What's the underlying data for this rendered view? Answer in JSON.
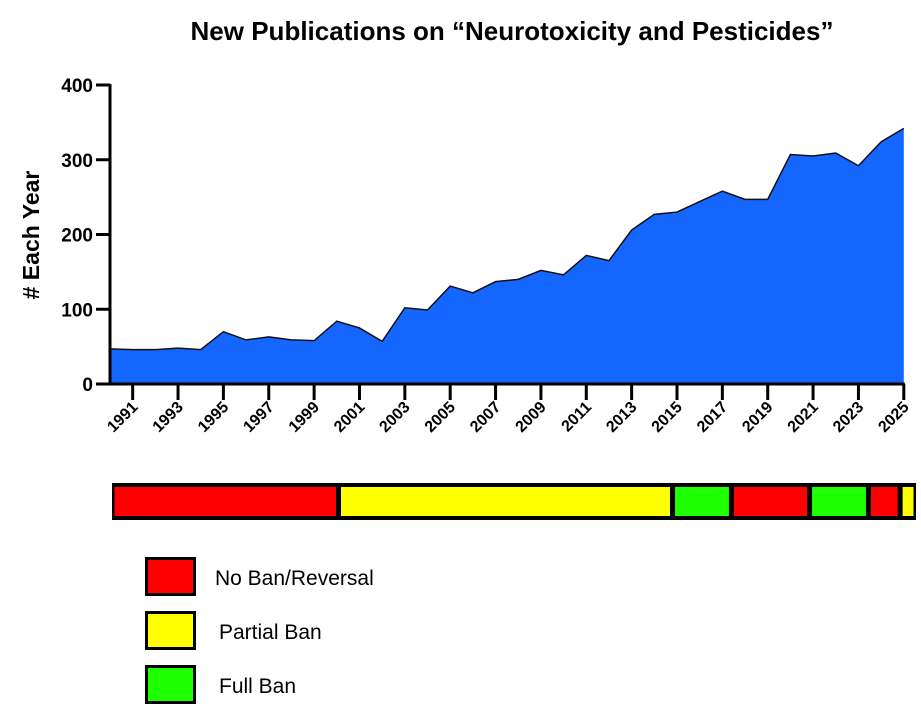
{
  "chart_data": {
    "type": "area",
    "title": "New Publications on “Neurotoxicity and Pesticides”",
    "xlabel": "",
    "ylabel": "# Each Year",
    "ylim": [
      0,
      400
    ],
    "xlim": [
      1990,
      2025
    ],
    "grid": false,
    "yticks": [
      "0",
      "100",
      "200",
      "300",
      "400"
    ],
    "xticks": [
      "1991",
      "1993",
      "1995",
      "1997",
      "1999",
      "2001",
      "2003",
      "2005",
      "2007",
      "2009",
      "2011",
      "2013",
      "2015",
      "2017",
      "2019",
      "2021",
      "2023",
      "2025"
    ],
    "x": [
      1990,
      1991,
      1992,
      1993,
      1994,
      1995,
      1996,
      1997,
      1998,
      1999,
      2000,
      2001,
      2002,
      2003,
      2004,
      2005,
      2006,
      2007,
      2008,
      2009,
      2010,
      2011,
      2012,
      2013,
      2014,
      2015,
      2016,
      2017,
      2018,
      2019,
      2020,
      2021,
      2022,
      2023,
      2024,
      2025
    ],
    "values": [
      47,
      46,
      46,
      48,
      46,
      70,
      59,
      63,
      59,
      58,
      84,
      75,
      57,
      102,
      99,
      131,
      122,
      137,
      140,
      152,
      146,
      172,
      165,
      206,
      227,
      230,
      244,
      258,
      247,
      247,
      307,
      305,
      309,
      292,
      324,
      342
    ],
    "fill_color": "#1466FF",
    "ban_status_bar": {
      "segments": [
        {
          "status": "no_ban",
          "start": 1990,
          "end": 2000
        },
        {
          "status": "partial",
          "start": 2000,
          "end": 2014.75
        },
        {
          "status": "full",
          "start": 2014.75,
          "end": 2017.35
        },
        {
          "status": "no_ban",
          "start": 2017.35,
          "end": 2020.8
        },
        {
          "status": "full",
          "start": 2020.8,
          "end": 2023.4
        },
        {
          "status": "no_ban",
          "start": 2023.4,
          "end": 2024.8
        },
        {
          "status": "partial",
          "start": 2024.8,
          "end": 2025.5
        }
      ]
    },
    "legend": {
      "placement": "bottom-left",
      "items": [
        {
          "key": "no_ban",
          "label": "No Ban/Reversal",
          "color": "#FF0000"
        },
        {
          "key": "partial",
          "label": "Partial Ban",
          "color": "#FFFF00"
        },
        {
          "key": "full",
          "label": "Full Ban",
          "color": "#1EFF00"
        }
      ]
    }
  }
}
